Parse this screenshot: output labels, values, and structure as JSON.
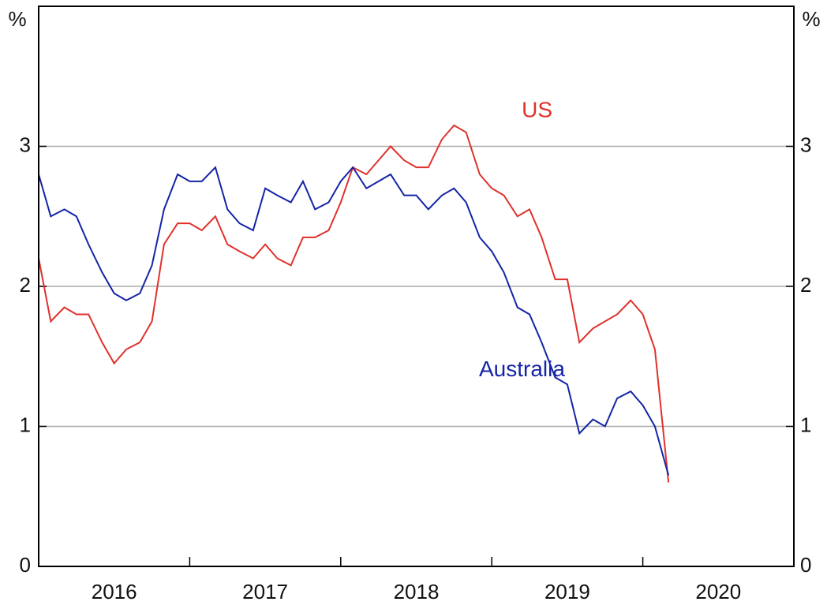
{
  "chart_data": {
    "type": "line",
    "y_unit_left": "%",
    "y_unit_right": "%",
    "categories": [
      "2016",
      "2017",
      "2018",
      "2019",
      "2020"
    ],
    "xlim": [
      2016,
      2021
    ],
    "x": [
      2016,
      2016.08,
      2016.17,
      2016.25,
      2016.33,
      2016.42,
      2016.5,
      2016.58,
      2016.67,
      2016.75,
      2016.83,
      2016.92,
      2017,
      2017.08,
      2017.17,
      2017.25,
      2017.33,
      2017.42,
      2017.5,
      2017.58,
      2017.67,
      2017.75,
      2017.83,
      2017.92,
      2018,
      2018.08,
      2018.17,
      2018.25,
      2018.33,
      2018.42,
      2018.5,
      2018.58,
      2018.67,
      2018.75,
      2018.83,
      2018.92,
      2019,
      2019.08,
      2019.17,
      2019.25,
      2019.33,
      2019.42,
      2019.5,
      2019.58,
      2019.67,
      2019.75,
      2019.83,
      2019.92,
      2020,
      2020.08,
      2020.17
    ],
    "series": [
      {
        "name": "US",
        "color": "#e0312b",
        "values": [
          2.2,
          1.75,
          1.85,
          1.8,
          1.8,
          1.6,
          1.45,
          1.55,
          1.6,
          1.75,
          2.3,
          2.45,
          2.45,
          2.4,
          2.5,
          2.3,
          2.25,
          2.2,
          2.3,
          2.2,
          2.15,
          2.35,
          2.35,
          2.4,
          2.6,
          2.85,
          2.8,
          2.9,
          3.0,
          2.9,
          2.85,
          2.85,
          3.05,
          3.15,
          3.1,
          2.8,
          2.7,
          2.65,
          2.5,
          2.55,
          2.35,
          2.05,
          2.05,
          1.6,
          1.7,
          1.75,
          1.8,
          1.9,
          1.8,
          1.55,
          0.6
        ],
        "label_pos": [
          2019.3,
          3.25
        ]
      },
      {
        "name": "Australia",
        "color": "#1424a6",
        "values": [
          2.8,
          2.5,
          2.55,
          2.5,
          2.3,
          2.1,
          1.95,
          1.9,
          1.95,
          2.15,
          2.55,
          2.8,
          2.75,
          2.75,
          2.85,
          2.55,
          2.45,
          2.4,
          2.7,
          2.65,
          2.6,
          2.75,
          2.55,
          2.6,
          2.75,
          2.85,
          2.7,
          2.75,
          2.8,
          2.65,
          2.65,
          2.55,
          2.65,
          2.7,
          2.6,
          2.35,
          2.25,
          2.1,
          1.85,
          1.8,
          1.6,
          1.35,
          1.3,
          0.95,
          1.05,
          1.0,
          1.2,
          1.25,
          1.15,
          1.0,
          0.65
        ],
        "label_pos": [
          2019.2,
          1.4
        ]
      }
    ],
    "ylim": [
      0,
      4
    ],
    "yticks": [
      0,
      1,
      2,
      3
    ],
    "grid": true
  }
}
